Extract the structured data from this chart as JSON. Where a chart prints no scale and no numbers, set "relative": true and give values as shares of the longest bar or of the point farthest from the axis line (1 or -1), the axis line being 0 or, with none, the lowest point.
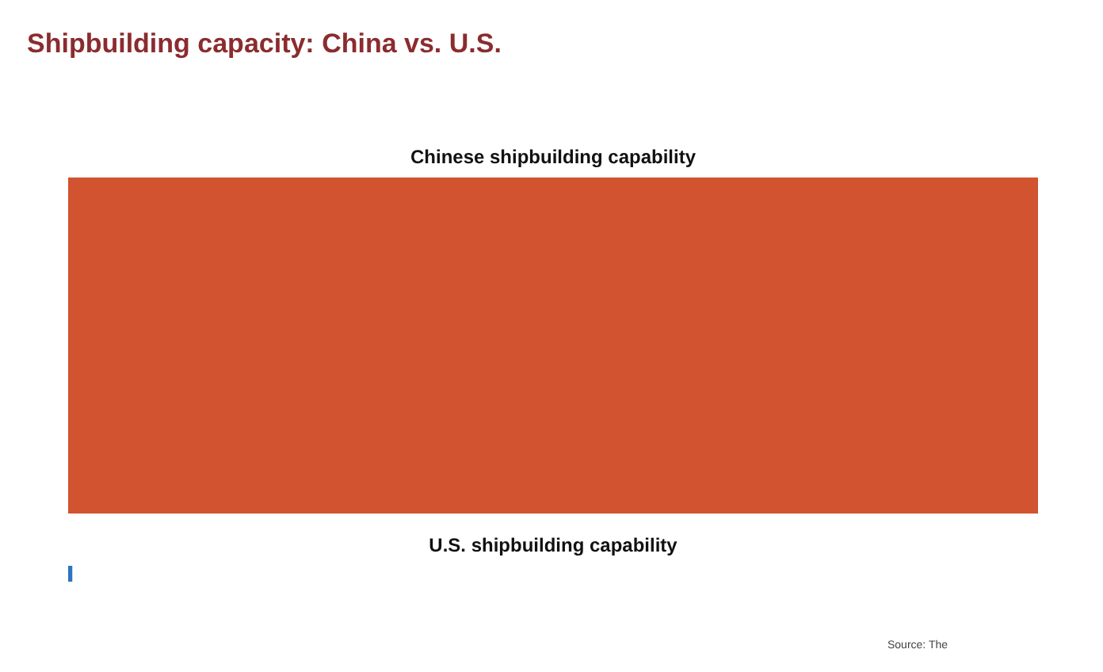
{
  "chart_data": {
    "type": "bar",
    "title": "Shipbuilding capacity: China vs. U.S.",
    "categories": [
      "Chinese shipbuilding capability",
      "U.S. shipbuilding capability"
    ],
    "values": [
      1,
      0.0043
    ],
    "colors": [
      "#d2532f",
      "#2f74c0"
    ],
    "orientation": "horizontal",
    "relative": true,
    "annotations": [
      "Source: The"
    ]
  }
}
